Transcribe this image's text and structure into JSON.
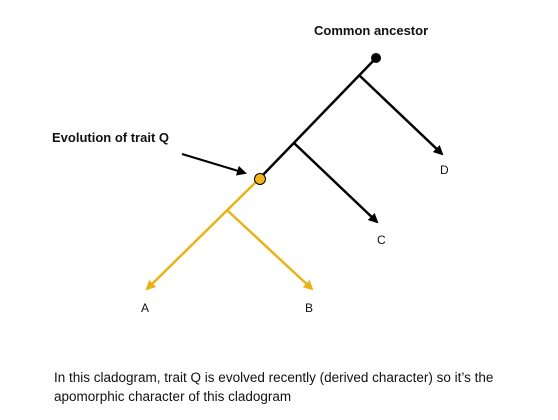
{
  "labels": {
    "root": "Common ancestor",
    "trait": "Evolution of trait Q",
    "taxa": [
      "A",
      "B",
      "C",
      "D"
    ]
  },
  "caption": {
    "line1": "In this cladogram, trait Q is evolved recently (derived character) so it’s the",
    "line2": "apomorphic character of this cladogram"
  },
  "colors": {
    "lineage": "#000000",
    "derived_lineage": "#e8b21a",
    "trait_node_fill": "#f2b318",
    "root_node_fill": "#000000"
  }
}
